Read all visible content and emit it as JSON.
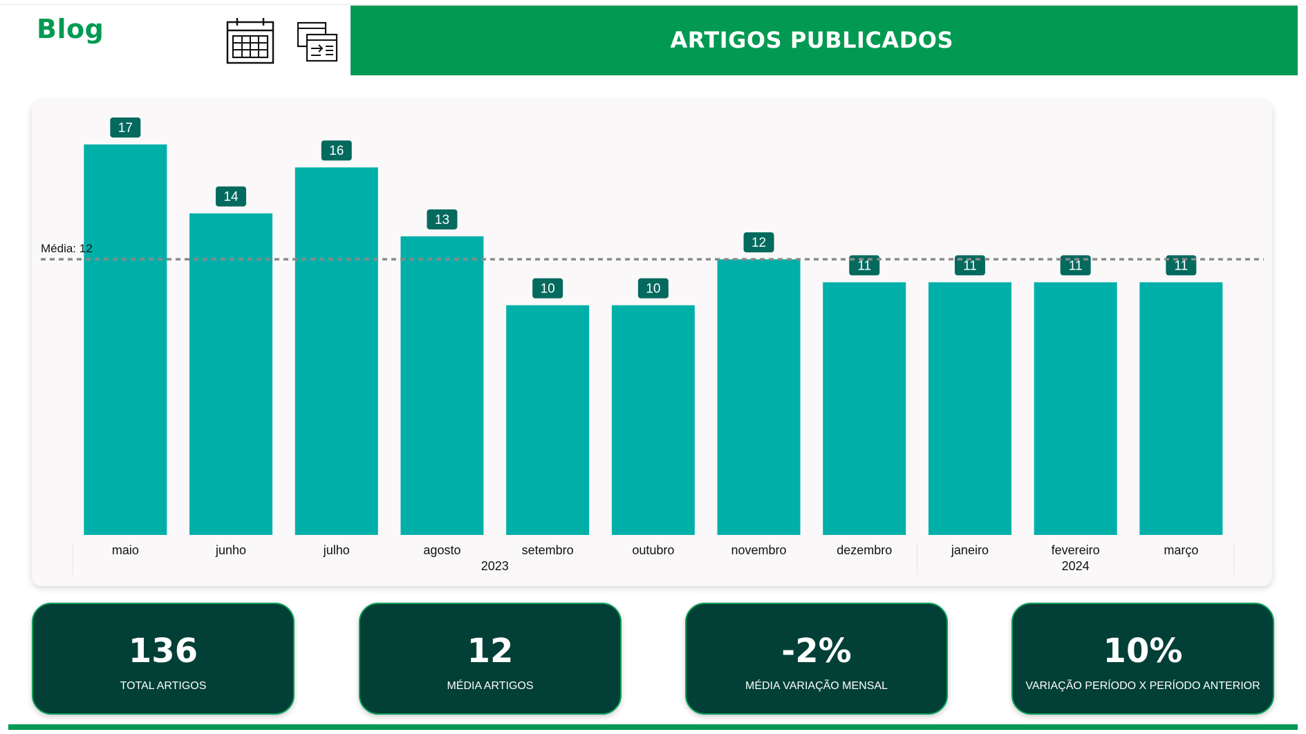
{
  "header": {
    "blog_title": "Blog",
    "page_title": "ARTIGOS PUBLICADOS",
    "calendar_icon": "calendar-icon",
    "transfer_icon": "data-transfer-icon"
  },
  "colors": {
    "brand_green": "#029a52",
    "bar": "#00b0a8",
    "label_box": "#046a5e",
    "card": "#023f36",
    "panel": "#faf8f9"
  },
  "chart_data": {
    "type": "bar",
    "categories": [
      "maio",
      "junho",
      "julho",
      "agosto",
      "setembro",
      "outubro",
      "novembro",
      "dezembro",
      "janeiro",
      "fevereiro",
      "março"
    ],
    "year_groups": [
      {
        "label": "2023",
        "from": 0,
        "to": 7
      },
      {
        "label": "2024",
        "from": 8,
        "to": 10
      }
    ],
    "series": [
      {
        "values": [
          17,
          14,
          16,
          13,
          10,
          10,
          12,
          11,
          11,
          11,
          11
        ]
      }
    ],
    "average_line": {
      "label": "Média: 12",
      "value": 12
    },
    "ylim": [
      0,
      17
    ],
    "grid": false,
    "data_labels": true,
    "title": "",
    "xlabel": "",
    "ylabel": ""
  },
  "kpis": [
    {
      "value": "136",
      "label": "TOTAL ARTIGOS"
    },
    {
      "value": "12",
      "label": "MÉDIA ARTIGOS"
    },
    {
      "value": "-2%",
      "label": "MÉDIA VARIAÇÃO MENSAL"
    },
    {
      "value": "10%",
      "label": "VARIAÇÃO PERÍODO X PERÍODO ANTERIOR"
    }
  ]
}
